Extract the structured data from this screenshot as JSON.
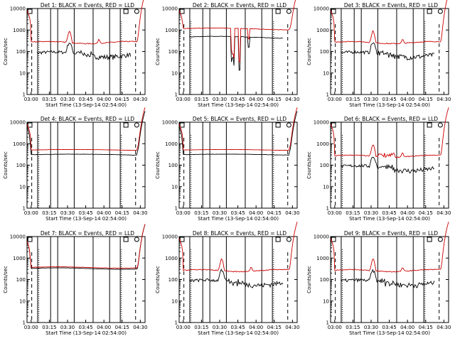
{
  "y_axis_label": "Counts/sec",
  "x_axis_label": "Start Time (13-Sep-14 02:54:00)",
  "x_tick_labels": [
    "03:00",
    "03:15",
    "03:30",
    "03:45",
    "04:00",
    "04:15",
    "04:30"
  ],
  "y_tick_labels": [
    "1",
    "10",
    "100",
    "1000",
    "10000"
  ],
  "chart_data": [
    {
      "type": "line",
      "title": "Det 1: BLACK = Events, RED = LLD",
      "xlabel": "Start Time (13-Sep-14 02:54:00)",
      "ylabel": "Counts/sec",
      "yscale": "log",
      "ylim": [
        1,
        10000
      ],
      "series": [
        {
          "name": "Events",
          "color": "#000000",
          "style": "low_spiky"
        },
        {
          "name": "LLD",
          "color": "#cc0000",
          "style": "high_steady"
        }
      ]
    },
    {
      "type": "line",
      "title": "Det 2: BLACK = Events, RED = LLD",
      "xlabel": "Start Time (13-Sep-14 02:54:00)",
      "ylabel": "Counts/sec",
      "yscale": "log",
      "ylim": [
        1,
        10000
      ],
      "series": [
        {
          "name": "Events",
          "color": "#000000",
          "style": "dips"
        },
        {
          "name": "LLD",
          "color": "#cc0000",
          "style": "dips_high"
        }
      ]
    },
    {
      "type": "line",
      "title": "Det 3: BLACK = Events, RED = LLD",
      "xlabel": "Start Time (13-Sep-14 02:54:00)",
      "ylabel": "Counts/sec",
      "yscale": "log",
      "ylim": [
        1,
        10000
      ],
      "series": [
        {
          "name": "Events",
          "color": "#000000",
          "style": "low_spiky"
        },
        {
          "name": "LLD",
          "color": "#cc0000",
          "style": "high_steady"
        }
      ]
    },
    {
      "type": "line",
      "title": "Det 4: BLACK = Events, RED = LLD",
      "xlabel": "Start Time (13-Sep-14 02:54:00)",
      "ylabel": "Counts/sec",
      "yscale": "log",
      "ylim": [
        1,
        10000
      ],
      "series": [
        {
          "name": "Events",
          "color": "#000000",
          "style": "flat_low"
        },
        {
          "name": "LLD",
          "color": "#cc0000",
          "style": "flat_high"
        }
      ]
    },
    {
      "type": "line",
      "title": "Det 5: BLACK = Events, RED = LLD",
      "xlabel": "Start Time (13-Sep-14 02:54:00)",
      "ylabel": "Counts/sec",
      "yscale": "log",
      "ylim": [
        1,
        10000
      ],
      "series": [
        {
          "name": "Events",
          "color": "#000000",
          "style": "flat_low"
        },
        {
          "name": "LLD",
          "color": "#cc0000",
          "style": "flat_high"
        }
      ]
    },
    {
      "type": "line",
      "title": "Det 6: BLACK = Events, RED = LLD",
      "xlabel": "Start Time (13-Sep-14 02:54:00)",
      "ylabel": "Counts/sec",
      "yscale": "log",
      "ylim": [
        1,
        10000
      ],
      "series": [
        {
          "name": "Events",
          "color": "#000000",
          "style": "low_spiky"
        },
        {
          "name": "LLD",
          "color": "#cc0000",
          "style": "high_spiky"
        }
      ]
    },
    {
      "type": "line",
      "title": "Det 7: BLACK = Events, RED = LLD",
      "xlabel": "Start Time (13-Sep-14 02:54:00)",
      "ylabel": "Counts/sec",
      "yscale": "log",
      "ylim": [
        1,
        10000
      ],
      "series": [
        {
          "name": "Events",
          "color": "#000000",
          "style": "flat_mid"
        },
        {
          "name": "LLD",
          "color": "#cc0000",
          "style": "flat_mid_red"
        }
      ]
    },
    {
      "type": "line",
      "title": "Det 8: BLACK = Events, RED = LLD",
      "xlabel": "Start Time (13-Sep-14 02:54:00)",
      "ylabel": "Counts/sec",
      "yscale": "log",
      "ylim": [
        1,
        10000
      ],
      "series": [
        {
          "name": "Events",
          "color": "#000000",
          "style": "low_spiky"
        },
        {
          "name": "LLD",
          "color": "#cc0000",
          "style": "high_steady"
        }
      ]
    },
    {
      "type": "line",
      "title": "Det 9: BLACK = Events, RED = LLD",
      "xlabel": "Start Time (13-Sep-14 02:54:00)",
      "ylabel": "Counts/sec",
      "yscale": "log",
      "ylim": [
        1,
        10000
      ],
      "series": [
        {
          "name": "Events",
          "color": "#000000",
          "style": "low_spiky"
        },
        {
          "name": "LLD",
          "color": "#cc0000",
          "style": "high_steady"
        }
      ]
    }
  ]
}
